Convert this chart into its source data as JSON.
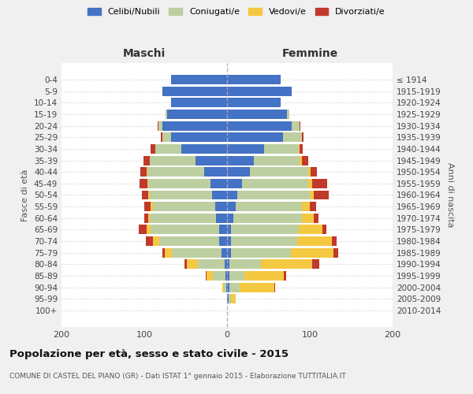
{
  "age_groups": [
    "0-4",
    "5-9",
    "10-14",
    "15-19",
    "20-24",
    "25-29",
    "30-34",
    "35-39",
    "40-44",
    "45-49",
    "50-54",
    "55-59",
    "60-64",
    "65-69",
    "70-74",
    "75-79",
    "80-84",
    "85-89",
    "90-94",
    "95-99",
    "100+"
  ],
  "birth_years": [
    "2010-2014",
    "2005-2009",
    "2000-2004",
    "1995-1999",
    "1990-1994",
    "1985-1989",
    "1980-1984",
    "1975-1979",
    "1970-1974",
    "1965-1969",
    "1960-1964",
    "1955-1959",
    "1950-1954",
    "1945-1949",
    "1940-1944",
    "1935-1939",
    "1930-1934",
    "1925-1929",
    "1920-1924",
    "1915-1919",
    "≤ 1914"
  ],
  "males": {
    "celibe": [
      68,
      78,
      68,
      72,
      78,
      68,
      55,
      38,
      28,
      20,
      18,
      14,
      13,
      10,
      10,
      7,
      3,
      2,
      1,
      0,
      0
    ],
    "coniugato": [
      0,
      0,
      0,
      2,
      5,
      10,
      32,
      55,
      68,
      75,
      75,
      76,
      80,
      82,
      72,
      60,
      32,
      15,
      3,
      0,
      0
    ],
    "vedovo": [
      0,
      0,
      0,
      0,
      0,
      0,
      0,
      0,
      1,
      1,
      2,
      2,
      2,
      5,
      8,
      8,
      14,
      8,
      2,
      0,
      0
    ],
    "divorziato": [
      0,
      0,
      0,
      0,
      1,
      2,
      5,
      8,
      8,
      10,
      8,
      8,
      5,
      10,
      8,
      3,
      2,
      1,
      0,
      0,
      0
    ]
  },
  "females": {
    "nubile": [
      65,
      78,
      65,
      72,
      78,
      68,
      45,
      32,
      28,
      18,
      12,
      10,
      8,
      5,
      5,
      5,
      3,
      3,
      3,
      2,
      0
    ],
    "coniugata": [
      0,
      0,
      0,
      3,
      10,
      22,
      42,
      56,
      70,
      80,
      88,
      80,
      82,
      82,
      80,
      72,
      38,
      18,
      12,
      3,
      0
    ],
    "vedova": [
      0,
      0,
      0,
      0,
      0,
      0,
      1,
      2,
      3,
      5,
      5,
      10,
      15,
      28,
      42,
      52,
      62,
      48,
      42,
      5,
      0
    ],
    "divorziata": [
      0,
      0,
      0,
      0,
      1,
      2,
      3,
      8,
      8,
      18,
      18,
      8,
      5,
      5,
      5,
      5,
      8,
      2,
      1,
      0,
      0
    ]
  },
  "colors": {
    "celibe": "#4472C4",
    "coniugato": "#BDCFA0",
    "vedovo": "#F5C842",
    "divorziato": "#C0392B"
  },
  "legend_labels": [
    "Celibi/Nubili",
    "Coniugati/e",
    "Vedovi/e",
    "Divorziati/e"
  ],
  "title": "Popolazione per età, sesso e stato civile - 2015",
  "subtitle": "COMUNE DI CASTEL DEL PIANO (GR) - Dati ISTAT 1° gennaio 2015 - Elaborazione TUTTITALIA.IT",
  "xlabel_left": "Maschi",
  "xlabel_right": "Femmine",
  "ylabel_left": "Fasce di età",
  "ylabel_right": "Anni di nascita",
  "xlim": 200,
  "background_color": "#f0f0f0",
  "plot_bg_color": "#ffffff"
}
